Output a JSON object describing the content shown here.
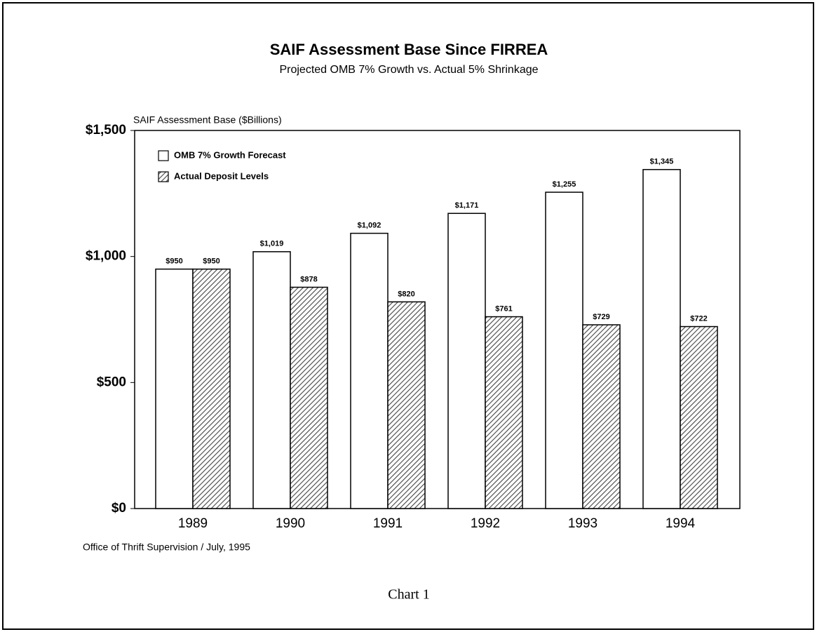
{
  "chart_data": {
    "type": "bar",
    "title": "SAIF Assessment Base Since FIRREA",
    "subtitle": "Projected OMB 7% Growth vs. Actual 5% Shrinkage",
    "y_label": "SAIF Assessment Base ($Billions)",
    "categories": [
      "1989",
      "1990",
      "1991",
      "1992",
      "1993",
      "1994"
    ],
    "series": [
      {
        "name": "OMB 7% Growth Forecast",
        "color": "#ffffff",
        "values": [
          950,
          1019,
          1092,
          1171,
          1255,
          1345
        ],
        "value_labels": [
          "$950",
          "$1,019",
          "$1,092",
          "$1,171",
          "$1,255",
          "$1,345"
        ]
      },
      {
        "name": "Actual Deposit Levels",
        "color": "#444444",
        "values": [
          950,
          878,
          820,
          761,
          729,
          722
        ],
        "value_labels": [
          "$950",
          "$878",
          "$820",
          "$761",
          "$729",
          "$722"
        ]
      }
    ],
    "ylim": [
      0,
      1500
    ],
    "yticks": [
      {
        "value": 0,
        "label": "$0"
      },
      {
        "value": 500,
        "label": "$500"
      },
      {
        "value": 1000,
        "label": "$1,000"
      },
      {
        "value": 1500,
        "label": "$1,500"
      }
    ],
    "legend": "upper left",
    "source": "Office of Thrift Supervision / July, 1995",
    "caption": "Chart 1"
  }
}
